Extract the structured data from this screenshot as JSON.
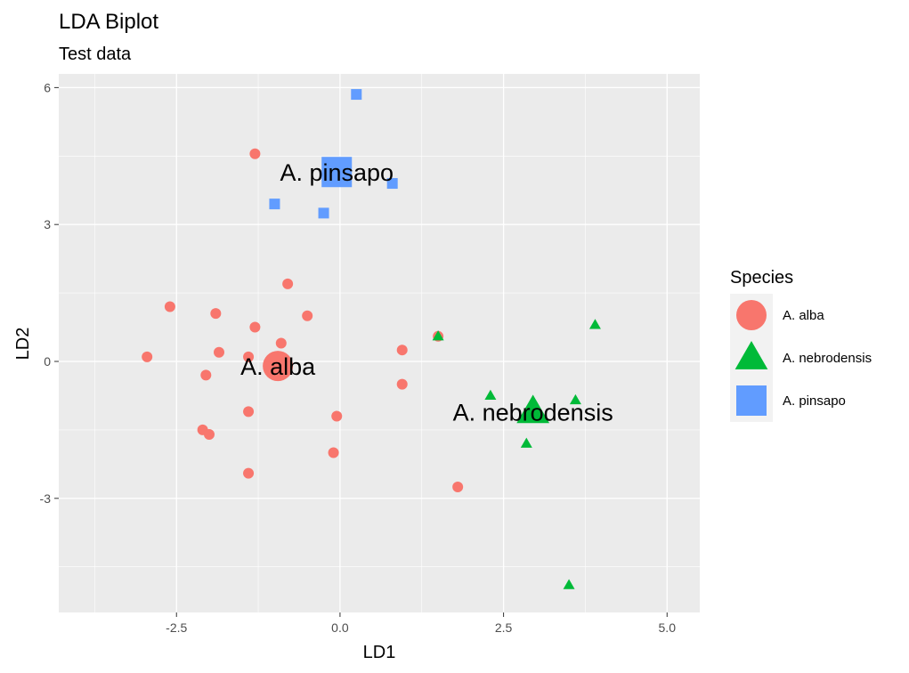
{
  "chart_data": {
    "type": "scatter",
    "title": "LDA Biplot",
    "subtitle": "Test data",
    "xlabel": "LD1",
    "ylabel": "LD2",
    "xlim": [
      -4.3,
      5.5
    ],
    "ylim": [
      -5.5,
      6.3
    ],
    "x_ticks": [
      -2.5,
      0.0,
      2.5,
      5.0
    ],
    "x_tick_labels": [
      "-2.5",
      "0.0",
      "2.5",
      "5.0"
    ],
    "y_ticks": [
      -3,
      0,
      3,
      6
    ],
    "y_tick_labels": [
      "-3",
      "0",
      "3",
      "6"
    ],
    "grid": true,
    "legend": {
      "title": "Species",
      "placement": "right",
      "entries": [
        "A. alba",
        "A. nebrodensis",
        "A. pinsapo"
      ]
    },
    "series": [
      {
        "name": "A. alba",
        "shape": "circle",
        "color": "#F8766D",
        "points": [
          [
            -1.3,
            4.55
          ],
          [
            -0.8,
            1.7
          ],
          [
            -2.6,
            1.2
          ],
          [
            -1.9,
            1.05
          ],
          [
            -0.5,
            1.0
          ],
          [
            -1.3,
            0.75
          ],
          [
            -0.9,
            0.4
          ],
          [
            -1.85,
            0.2
          ],
          [
            -1.4,
            0.1
          ],
          [
            -2.95,
            0.1
          ],
          [
            -2.05,
            -0.3
          ],
          [
            0.95,
            0.25
          ],
          [
            0.95,
            -0.5
          ],
          [
            1.5,
            0.55
          ],
          [
            -1.4,
            -1.1
          ],
          [
            -0.05,
            -1.2
          ],
          [
            -2.1,
            -1.5
          ],
          [
            -2.0,
            -1.6
          ],
          [
            -0.1,
            -2.0
          ],
          [
            -1.4,
            -2.45
          ],
          [
            1.8,
            -2.75
          ]
        ],
        "centroid": [
          -0.95,
          -0.1
        ],
        "centroid_label": "A. alba"
      },
      {
        "name": "A. nebrodensis",
        "shape": "triangle",
        "color": "#00BA38",
        "points": [
          [
            1.5,
            0.55
          ],
          [
            3.9,
            0.8
          ],
          [
            2.3,
            -0.75
          ],
          [
            3.6,
            -0.85
          ],
          [
            2.85,
            -1.8
          ],
          [
            3.5,
            -4.9
          ]
        ],
        "centroid": [
          2.95,
          -1.1
        ],
        "centroid_label": "A. nebrodensis"
      },
      {
        "name": "A. pinsapo",
        "shape": "square",
        "color": "#619CFF",
        "points": [
          [
            0.25,
            5.85
          ],
          [
            0.8,
            3.9
          ],
          [
            -1.0,
            3.45
          ],
          [
            -0.25,
            3.25
          ]
        ],
        "centroid": [
          -0.05,
          4.15
        ],
        "centroid_label": "A. pinsapo"
      }
    ]
  }
}
